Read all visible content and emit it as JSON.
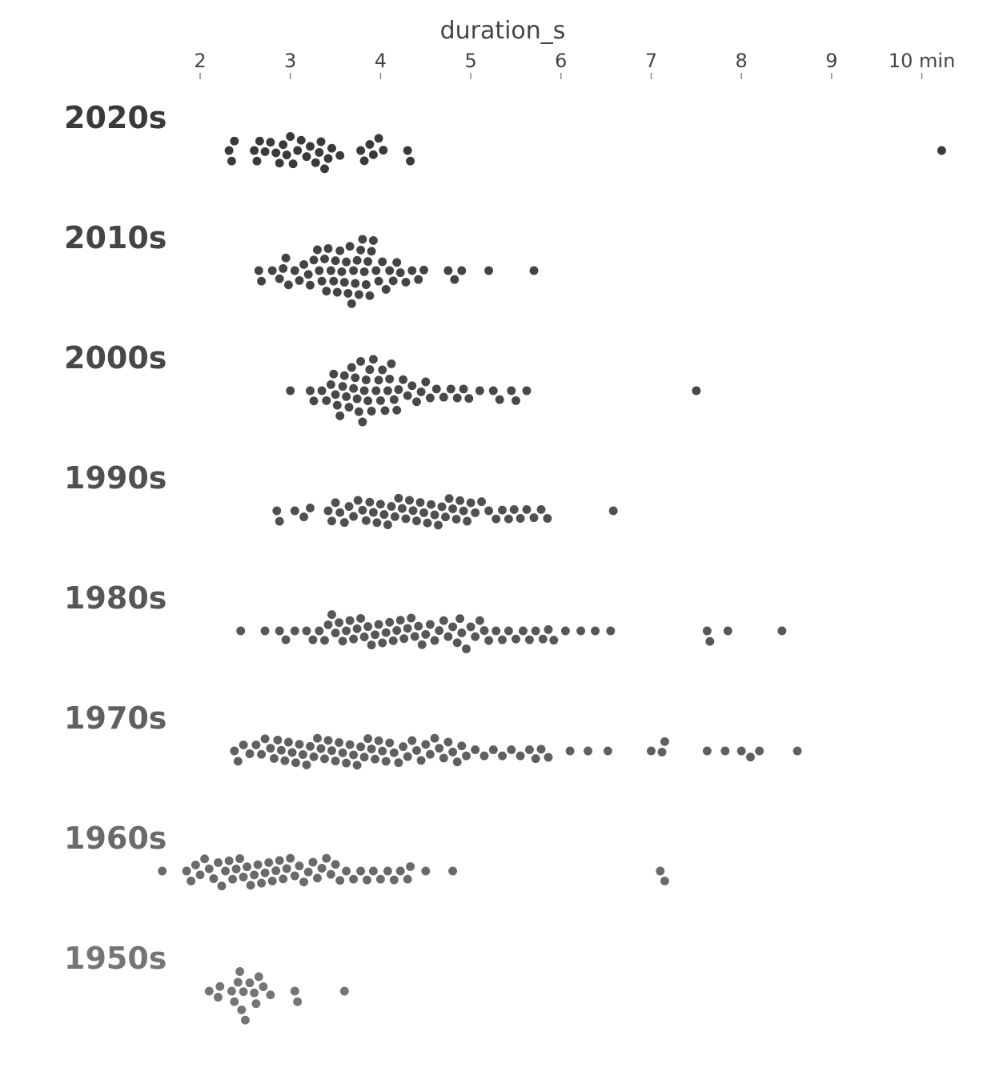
{
  "chart_data": {
    "type": "scatter",
    "subtype": "beeswarm",
    "title": "",
    "xlabel": "duration_s",
    "xlim": [
      2,
      10
    ],
    "x_ticks": [
      {
        "value": 2,
        "label": "2"
      },
      {
        "value": 3,
        "label": "3"
      },
      {
        "value": 4,
        "label": "4"
      },
      {
        "value": 5,
        "label": "5"
      },
      {
        "value": 6,
        "label": "6"
      },
      {
        "value": 7,
        "label": "7"
      },
      {
        "value": 8,
        "label": "8"
      },
      {
        "value": 9,
        "label": "9"
      },
      {
        "value": 10,
        "label": "10 min"
      }
    ],
    "grid": false,
    "legend": "none",
    "series": [
      {
        "name": "2020s",
        "color": "#3a3a3a",
        "values": [
          2.32,
          2.35,
          2.38,
          2.6,
          2.63,
          2.66,
          2.72,
          2.78,
          2.84,
          2.88,
          2.92,
          2.96,
          3.0,
          3.03,
          3.08,
          3.12,
          3.18,
          3.22,
          3.28,
          3.32,
          3.34,
          3.38,
          3.42,
          3.46,
          3.55,
          3.78,
          3.82,
          3.88,
          3.92,
          3.98,
          4.03,
          4.3,
          4.33,
          10.22
        ]
      },
      {
        "name": "2010s",
        "color": "#444444",
        "values": [
          2.65,
          2.68,
          2.8,
          2.88,
          2.92,
          2.95,
          2.98,
          3.05,
          3.1,
          3.15,
          3.2,
          3.22,
          3.26,
          3.3,
          3.32,
          3.35,
          3.38,
          3.4,
          3.42,
          3.45,
          3.48,
          3.5,
          3.52,
          3.55,
          3.57,
          3.6,
          3.62,
          3.64,
          3.66,
          3.68,
          3.7,
          3.72,
          3.74,
          3.76,
          3.78,
          3.8,
          3.82,
          3.84,
          3.86,
          3.88,
          3.9,
          3.92,
          3.95,
          3.98,
          4.02,
          4.06,
          4.1,
          4.14,
          4.18,
          4.22,
          4.28,
          4.35,
          4.42,
          4.48,
          4.75,
          4.82,
          4.9,
          5.2,
          5.7
        ]
      },
      {
        "name": "2000s",
        "color": "#484848",
        "values": [
          3.0,
          3.22,
          3.26,
          3.35,
          3.4,
          3.45,
          3.48,
          3.5,
          3.52,
          3.55,
          3.58,
          3.6,
          3.62,
          3.65,
          3.68,
          3.7,
          3.72,
          3.74,
          3.76,
          3.78,
          3.8,
          3.82,
          3.84,
          3.86,
          3.88,
          3.9,
          3.92,
          3.95,
          3.98,
          4.0,
          4.02,
          4.05,
          4.08,
          4.1,
          4.12,
          4.15,
          4.18,
          4.2,
          4.25,
          4.3,
          4.35,
          4.4,
          4.45,
          4.5,
          4.55,
          4.62,
          4.7,
          4.78,
          4.85,
          4.92,
          4.98,
          5.1,
          5.25,
          5.32,
          5.45,
          5.5,
          5.62,
          7.5
        ]
      },
      {
        "name": "1990s",
        "color": "#505050",
        "values": [
          2.85,
          2.88,
          3.05,
          3.15,
          3.22,
          3.42,
          3.46,
          3.5,
          3.55,
          3.6,
          3.65,
          3.7,
          3.75,
          3.8,
          3.84,
          3.88,
          3.92,
          3.96,
          4.0,
          4.04,
          4.08,
          4.12,
          4.16,
          4.2,
          4.24,
          4.28,
          4.32,
          4.36,
          4.4,
          4.44,
          4.48,
          4.52,
          4.56,
          4.6,
          4.64,
          4.68,
          4.72,
          4.76,
          4.8,
          4.84,
          4.88,
          4.92,
          4.96,
          5.0,
          5.05,
          5.12,
          5.2,
          5.28,
          5.35,
          5.42,
          5.48,
          5.55,
          5.62,
          5.7,
          5.78,
          5.85,
          6.58
        ]
      },
      {
        "name": "1980s",
        "color": "#575757",
        "values": [
          2.45,
          2.72,
          2.88,
          2.95,
          3.05,
          3.18,
          3.25,
          3.32,
          3.38,
          3.42,
          3.46,
          3.5,
          3.54,
          3.58,
          3.62,
          3.66,
          3.7,
          3.74,
          3.78,
          3.82,
          3.86,
          3.9,
          3.94,
          3.98,
          4.02,
          4.06,
          4.1,
          4.14,
          4.18,
          4.22,
          4.26,
          4.3,
          4.34,
          4.38,
          4.42,
          4.46,
          4.5,
          4.55,
          4.6,
          4.65,
          4.7,
          4.75,
          4.8,
          4.85,
          4.88,
          4.9,
          4.95,
          5.0,
          5.05,
          5.1,
          5.15,
          5.2,
          5.28,
          5.35,
          5.42,
          5.5,
          5.58,
          5.65,
          5.72,
          5.8,
          5.86,
          5.92,
          6.05,
          6.22,
          6.38,
          6.55,
          7.62,
          7.65,
          7.85,
          8.45
        ]
      },
      {
        "name": "1970s",
        "color": "#606060",
        "values": [
          2.38,
          2.42,
          2.48,
          2.55,
          2.62,
          2.68,
          2.72,
          2.78,
          2.82,
          2.86,
          2.9,
          2.94,
          2.98,
          3.02,
          3.06,
          3.1,
          3.14,
          3.18,
          3.22,
          3.26,
          3.3,
          3.34,
          3.38,
          3.42,
          3.46,
          3.5,
          3.54,
          3.58,
          3.62,
          3.66,
          3.7,
          3.74,
          3.78,
          3.82,
          3.86,
          3.9,
          3.94,
          3.98,
          4.02,
          4.06,
          4.1,
          4.15,
          4.2,
          4.25,
          4.3,
          4.35,
          4.4,
          4.45,
          4.5,
          4.55,
          4.6,
          4.65,
          4.7,
          4.75,
          4.8,
          4.85,
          4.9,
          4.95,
          5.05,
          5.15,
          5.25,
          5.35,
          5.45,
          5.55,
          5.65,
          5.72,
          5.78,
          5.86,
          6.1,
          6.3,
          6.52,
          7.0,
          7.12,
          7.15,
          7.62,
          7.82,
          8.0,
          8.1,
          8.2,
          8.62
        ]
      },
      {
        "name": "1960s",
        "color": "#6a6a6a",
        "values": [
          1.58,
          1.85,
          1.9,
          1.95,
          2.0,
          2.05,
          2.1,
          2.15,
          2.2,
          2.24,
          2.28,
          2.32,
          2.36,
          2.4,
          2.44,
          2.48,
          2.52,
          2.56,
          2.6,
          2.64,
          2.68,
          2.72,
          2.76,
          2.8,
          2.84,
          2.88,
          2.92,
          2.96,
          3.0,
          3.05,
          3.1,
          3.15,
          3.2,
          3.25,
          3.3,
          3.35,
          3.4,
          3.45,
          3.5,
          3.55,
          3.62,
          3.7,
          3.78,
          3.85,
          3.92,
          4.0,
          4.08,
          4.15,
          4.22,
          4.3,
          4.33,
          4.5,
          4.8,
          7.1,
          7.15
        ]
      },
      {
        "name": "1950s",
        "color": "#757575",
        "values": [
          2.1,
          2.2,
          2.22,
          2.35,
          2.38,
          2.42,
          2.44,
          2.46,
          2.48,
          2.5,
          2.55,
          2.6,
          2.62,
          2.65,
          2.7,
          2.78,
          3.05,
          3.08,
          3.6
        ]
      }
    ]
  }
}
